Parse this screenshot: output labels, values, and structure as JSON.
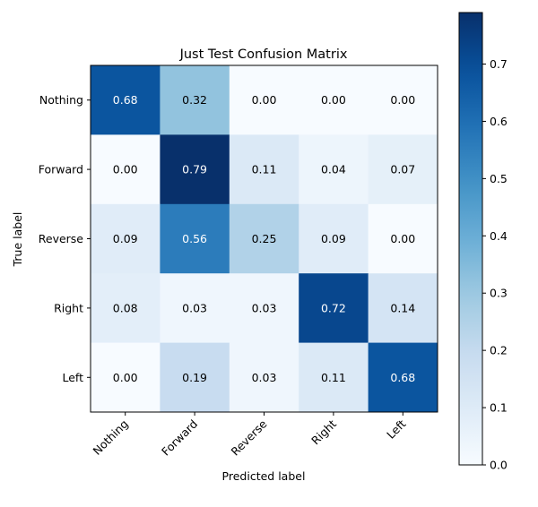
{
  "chart_data": {
    "type": "heatmap",
    "title": "Just Test Confusion Matrix",
    "xlabel": "Predicted label",
    "ylabel": "True label",
    "x_categories": [
      "Nothing",
      "Forward",
      "Reverse",
      "Right",
      "Left"
    ],
    "y_categories": [
      "Nothing",
      "Forward",
      "Reverse",
      "Right",
      "Left"
    ],
    "values": [
      [
        0.68,
        0.32,
        0.0,
        0.0,
        0.0
      ],
      [
        0.0,
        0.79,
        0.11,
        0.04,
        0.07
      ],
      [
        0.09,
        0.56,
        0.25,
        0.09,
        0.0
      ],
      [
        0.08,
        0.03,
        0.03,
        0.72,
        0.14
      ],
      [
        0.0,
        0.19,
        0.03,
        0.11,
        0.68
      ]
    ],
    "colormap": "Blues",
    "vmin": 0.0,
    "vmax": 0.79,
    "colorbar_ticks": [
      "0.0",
      "0.1",
      "0.2",
      "0.3",
      "0.4",
      "0.5",
      "0.6",
      "0.7"
    ],
    "text_color_threshold": 0.395,
    "grid": false,
    "colorbar_placement": "right"
  }
}
